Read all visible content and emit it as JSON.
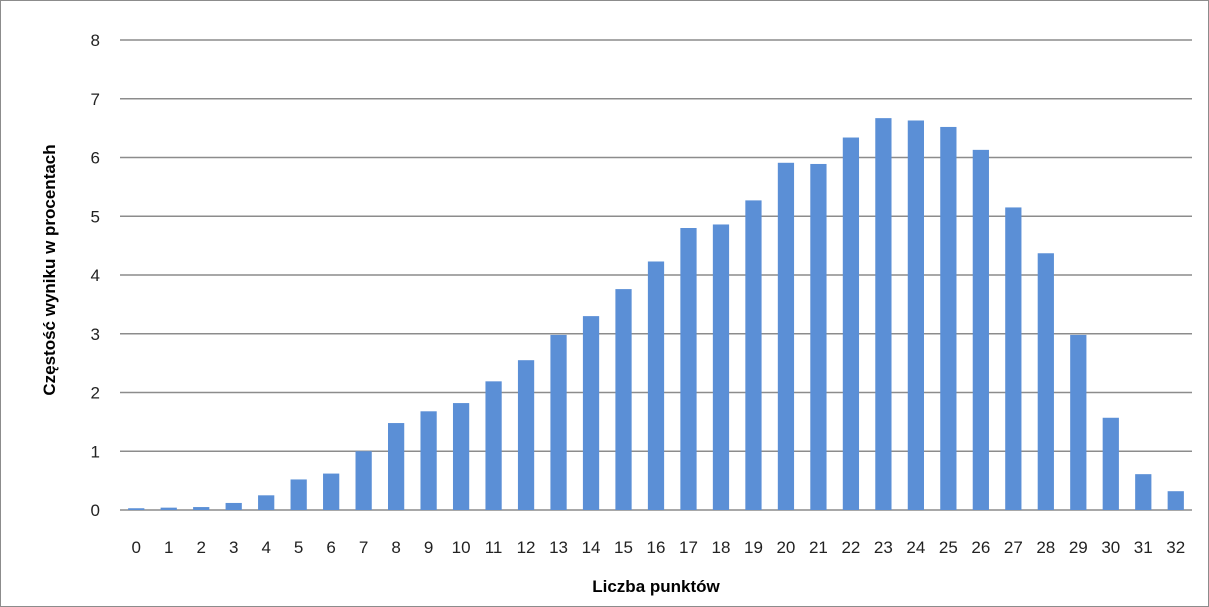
{
  "chart_data": {
    "type": "bar",
    "title": "",
    "xlabel": "Liczba punktów",
    "ylabel": "Częstość wyniku w procentach",
    "categories": [
      "0",
      "1",
      "2",
      "3",
      "4",
      "5",
      "6",
      "7",
      "8",
      "9",
      "10",
      "11",
      "12",
      "13",
      "14",
      "15",
      "16",
      "17",
      "18",
      "19",
      "20",
      "21",
      "22",
      "23",
      "24",
      "25",
      "26",
      "27",
      "28",
      "29",
      "30",
      "31",
      "32"
    ],
    "values": [
      0.03,
      0.04,
      0.05,
      0.12,
      0.25,
      0.52,
      0.62,
      1.0,
      1.48,
      1.68,
      1.82,
      2.19,
      2.55,
      2.98,
      3.3,
      3.76,
      4.23,
      4.8,
      4.86,
      5.27,
      5.91,
      5.89,
      6.34,
      6.67,
      6.63,
      6.52,
      6.13,
      5.15,
      4.37,
      2.98,
      1.57,
      0.61,
      0.32
    ],
    "ylim": [
      0,
      8
    ],
    "yticks": [
      "0",
      "1",
      "2",
      "3",
      "4",
      "5",
      "6",
      "7",
      "8"
    ],
    "grid": true,
    "legend": "none",
    "bar_color": "#5b8fd6",
    "grid_color": "#8c8c8c"
  }
}
